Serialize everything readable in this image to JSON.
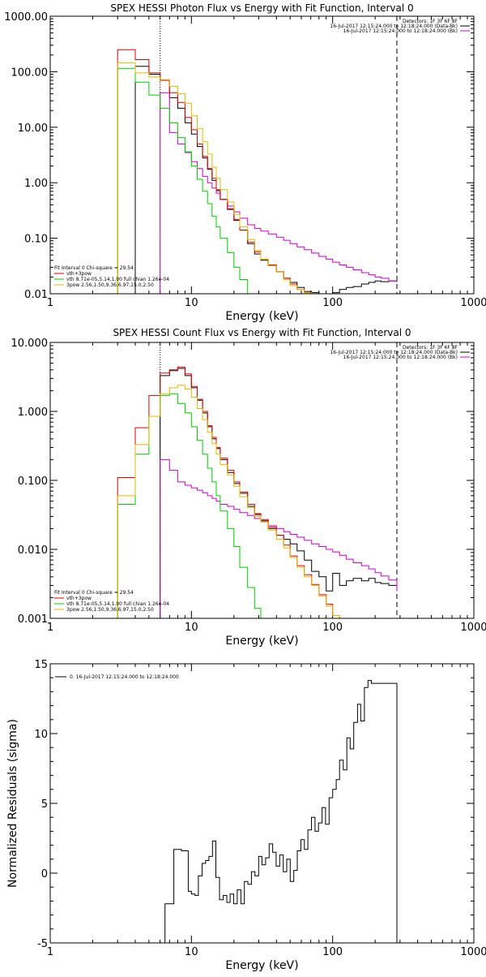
{
  "chart_data": [
    {
      "type": "line",
      "title": "SPEX HESSI Photon Flux vs Energy with Fit Function, Interval 0",
      "xlabel": "Energy (keV)",
      "ylabel": "",
      "xscale": "log",
      "yscale": "log",
      "xlim": [
        1,
        1000
      ],
      "ylim": [
        0.01,
        1000
      ],
      "xticks": [
        1,
        10,
        100,
        1000
      ],
      "xtick_labels": [
        "1",
        "10",
        "100",
        "1000"
      ],
      "yticks": [
        0.01,
        0.1,
        1,
        10,
        100,
        1000
      ],
      "ytick_labels": [
        "0.01",
        "0.10",
        "1.00",
        "10.00",
        "100.00",
        "1000.00"
      ],
      "vlines": [
        {
          "x": 6,
          "style": "dotted"
        },
        {
          "x": 285,
          "style": "dashed"
        }
      ],
      "legend_top_right": [
        {
          "text": "Detectors: 1F 3F 6F 8F",
          "color": ""
        },
        {
          "text": "16-Jul-2017 12:15:24.000 to 12:18:24.000 (Data-Bk)",
          "color": "#000000"
        },
        {
          "text": "16-Jul-2017 12:15:24.000 to 12:18:24.000 (Bk)",
          "color": "#cc00cc"
        }
      ],
      "legend_bottom_left": [
        {
          "text": "Fit Interval  0    Chi-square = 29.54",
          "color": ""
        },
        {
          "text": "vth+3pow",
          "color": "#dd0000"
        },
        {
          "text": "vth 8.71e-05,5.14,1.00   full chian 1.26e-04",
          "color": "#00cc00"
        },
        {
          "text": "3pow  2.56,1.50,9.36,6.97,15.0,2.50",
          "color": "#ddbb00"
        }
      ],
      "series": [
        {
          "name": "16-Jul-2017 12:15:24.000 to 12:18:24.000 (Data-Bk)",
          "color": "#000000",
          "x": [
            3,
            4,
            5,
            6,
            7,
            8,
            9,
            10,
            11,
            12,
            13,
            14,
            15,
            16,
            18,
            20,
            22,
            25,
            28,
            31,
            35,
            40,
            45,
            50,
            56,
            63,
            71,
            80,
            90,
            100,
            112,
            125,
            140,
            160,
            180,
            200,
            220,
            250,
            285
          ],
          "y": [
            0.001,
            125,
            90,
            70,
            34,
            22,
            12,
            7.5,
            4.5,
            2.8,
            1.75,
            1.1,
            0.72,
            0.5,
            0.33,
            0.21,
            0.14,
            0.08,
            0.052,
            0.04,
            0.032,
            0.025,
            0.019,
            0.016,
            0.013,
            0.011,
            0.0105,
            0.008,
            0.01,
            0.0105,
            0.012,
            0.013,
            0.0135,
            0.015,
            0.016,
            0.017,
            0.0165,
            0.017,
            0.016
          ]
        },
        {
          "name": "",
          "color": "#cc00cc",
          "x": [
            6,
            7,
            8,
            9,
            10,
            11,
            12,
            13,
            14,
            15,
            16,
            18,
            20,
            22,
            25,
            28,
            31,
            35,
            40,
            45,
            50,
            56,
            63,
            71,
            80,
            90,
            100,
            112,
            125,
            140,
            160,
            180,
            200,
            220,
            250,
            285
          ],
          "y": [
            42,
            8,
            5,
            3.5,
            2.4,
            1.8,
            1.3,
            1,
            0.8,
            0.65,
            0.5,
            0.38,
            0.3,
            0.23,
            0.175,
            0.15,
            0.135,
            0.12,
            0.105,
            0.092,
            0.08,
            0.07,
            0.062,
            0.054,
            0.047,
            0.042,
            0.037,
            0.033,
            0.03,
            0.027,
            0.024,
            0.022,
            0.02,
            0.019,
            0.017,
            0.016
          ]
        },
        {
          "name": "vth+3pow",
          "color": "#dd0000",
          "x": [
            3,
            4,
            5,
            6,
            7,
            8,
            9,
            10,
            11,
            12,
            13,
            14,
            15,
            16,
            18,
            20,
            22,
            25,
            28,
            31,
            35,
            40,
            45,
            50,
            56,
            63,
            71,
            80,
            90
          ],
          "y": [
            250,
            165,
            95,
            70,
            42,
            28,
            15,
            9,
            5,
            3,
            1.8,
            1.2,
            0.75,
            0.5,
            0.34,
            0.22,
            0.14,
            0.085,
            0.057,
            0.042,
            0.033,
            0.025,
            0.019,
            0.015,
            0.012,
            0.0105,
            0.01,
            0.01,
            0.01
          ]
        },
        {
          "name": "vth 8.71e-05,5.14,1.00   full chian 1.26e-04",
          "color": "#00cc00",
          "x": [
            3,
            4,
            5,
            6,
            7,
            8,
            9,
            10,
            11,
            12,
            13,
            14,
            15,
            16,
            18,
            20,
            22,
            25
          ],
          "y": [
            115,
            65,
            38,
            22,
            12,
            6.5,
            3.6,
            2,
            1.15,
            0.7,
            0.42,
            0.25,
            0.16,
            0.1,
            0.055,
            0.03,
            0.018,
            0.01
          ]
        },
        {
          "name": "3pow  2.56,1.50,9.36,6.97,15.0,2.50",
          "color": "#ddbb00",
          "x": [
            3,
            4,
            5,
            6,
            7,
            8,
            9,
            10,
            11,
            12,
            13,
            14,
            15,
            16,
            18,
            20,
            22,
            25,
            28,
            31,
            35,
            40,
            45,
            50,
            56,
            63,
            71,
            80,
            90
          ],
          "y": [
            145,
            95,
            80,
            72,
            55,
            40,
            27,
            16,
            9.5,
            5.5,
            3.3,
            1.9,
            1.2,
            0.75,
            0.45,
            0.27,
            0.16,
            0.095,
            0.06,
            0.042,
            0.032,
            0.025,
            0.018,
            0.014,
            0.012,
            0.0105,
            0.01,
            0.01,
            0.01
          ]
        }
      ]
    },
    {
      "type": "line",
      "title": "SPEX HESSI Count Flux vs Energy with Fit Function, Interval 0",
      "xlabel": "Energy (keV)",
      "ylabel": "",
      "xscale": "log",
      "yscale": "log",
      "xlim": [
        1,
        1000
      ],
      "ylim": [
        0.001,
        10
      ],
      "xticks": [
        1,
        10,
        100,
        1000
      ],
      "xtick_labels": [
        "1",
        "10",
        "100",
        "1000"
      ],
      "yticks": [
        0.001,
        0.01,
        0.1,
        1,
        10
      ],
      "ytick_labels": [
        "0.001",
        "0.010",
        "0.100",
        "1.000",
        "10.000"
      ],
      "vlines": [
        {
          "x": 6,
          "style": "dotted"
        },
        {
          "x": 285,
          "style": "dashed"
        }
      ],
      "legend_top_right": [
        {
          "text": "Detectors: 1F 3F 6F 8F",
          "color": ""
        },
        {
          "text": "16-Jul-2017 12:15:24.000 to 12:18:24.000 (Data-Bk)",
          "color": "#000000"
        },
        {
          "text": "16-Jul-2017 12:15:24.000 to 12:18:24.000 (Bk)",
          "color": "#cc00cc"
        }
      ],
      "legend_bottom_left": [
        {
          "text": "Fit Interval  0    Chi-square = 29.54",
          "color": ""
        },
        {
          "text": "vth+3pow",
          "color": "#dd0000"
        },
        {
          "text": "vth 8.71e-05,5.14,1.00   full chian 1.26e-04",
          "color": "#00cc00"
        },
        {
          "text": "3pow  2.56,1.50,9.36,6.97,15.0,2.50",
          "color": "#ddbb00"
        }
      ],
      "series": [
        {
          "name": "16-Jul-2017 12:15:24.000 to 12:18:24.000 (Data-Bk)",
          "color": "#000000",
          "x": [
            6,
            7,
            8,
            9,
            10,
            11,
            12,
            13,
            14,
            15,
            16,
            18,
            20,
            22,
            25,
            28,
            31,
            35,
            40,
            45,
            50,
            56,
            63,
            71,
            80,
            90,
            100,
            112,
            125,
            140,
            160,
            180,
            200,
            220,
            250,
            285
          ],
          "y": [
            3.3,
            3.9,
            4.2,
            3.3,
            2.2,
            1.45,
            0.95,
            0.6,
            0.4,
            0.29,
            0.2,
            0.13,
            0.09,
            0.065,
            0.042,
            0.032,
            0.026,
            0.02,
            0.016,
            0.014,
            0.012,
            0.0095,
            0.007,
            0.0048,
            0.004,
            0.0025,
            0.0045,
            0.003,
            0.0035,
            0.0038,
            0.0035,
            0.0038,
            0.0033,
            0.0032,
            0.003,
            0.0025
          ]
        },
        {
          "name": "",
          "color": "#cc00cc",
          "x": [
            6,
            7,
            8,
            9,
            10,
            11,
            12,
            13,
            14,
            15,
            16,
            18,
            20,
            22,
            25,
            28,
            31,
            35,
            40,
            45,
            50,
            56,
            63,
            71,
            80,
            90,
            100,
            112,
            125,
            140,
            160,
            180,
            200,
            220,
            250,
            285
          ],
          "y": [
            0.2,
            0.14,
            0.095,
            0.085,
            0.078,
            0.072,
            0.066,
            0.06,
            0.055,
            0.05,
            0.045,
            0.042,
            0.038,
            0.034,
            0.031,
            0.028,
            0.025,
            0.022,
            0.02,
            0.018,
            0.0165,
            0.015,
            0.0135,
            0.012,
            0.011,
            0.01,
            0.0092,
            0.0082,
            0.0072,
            0.0064,
            0.0058,
            0.0052,
            0.0046,
            0.0041,
            0.0036,
            0.0025
          ]
        },
        {
          "name": "vth+3pow",
          "color": "#dd0000",
          "x": [
            3,
            4,
            5,
            6,
            7,
            8,
            9,
            10,
            11,
            12,
            13,
            14,
            15,
            16,
            18,
            20,
            22,
            25,
            28,
            31,
            35,
            40,
            45,
            50,
            56,
            63,
            71,
            80,
            90,
            100,
            112,
            125
          ],
          "y": [
            0.11,
            0.58,
            1.7,
            3.6,
            4,
            4.4,
            3.5,
            2.3,
            1.5,
            1,
            0.62,
            0.42,
            0.3,
            0.21,
            0.14,
            0.095,
            0.068,
            0.045,
            0.033,
            0.027,
            0.021,
            0.016,
            0.0115,
            0.008,
            0.0058,
            0.0043,
            0.0031,
            0.0022,
            0.0016,
            0.0011,
            0.001,
            0.001
          ]
        },
        {
          "name": "vth 8.71e-05,5.14,1.00   full chian 1.26e-04",
          "color": "#00cc00",
          "x": [
            3,
            4,
            5,
            6,
            7,
            8,
            9,
            10,
            11,
            12,
            13,
            14,
            15,
            16,
            18,
            20,
            22,
            25,
            28,
            31
          ],
          "y": [
            0.045,
            0.24,
            0.85,
            1.7,
            1.8,
            1.3,
            0.95,
            0.6,
            0.38,
            0.24,
            0.15,
            0.095,
            0.06,
            0.036,
            0.02,
            0.011,
            0.0055,
            0.0028,
            0.0014,
            0.001
          ]
        },
        {
          "name": "3pow  2.56,1.50,9.36,6.97,15.0,2.50",
          "color": "#ddbb00",
          "x": [
            3,
            4,
            5,
            6,
            7,
            8,
            9,
            10,
            11,
            12,
            13,
            14,
            15,
            16,
            18,
            20,
            22,
            25,
            28,
            31,
            35,
            40,
            45,
            50,
            56,
            63,
            71,
            80,
            90,
            100,
            112,
            125
          ],
          "y": [
            0.06,
            0.33,
            0.85,
            1.8,
            2.2,
            2.4,
            2.1,
            1.6,
            1.1,
            0.76,
            0.5,
            0.34,
            0.24,
            0.17,
            0.12,
            0.082,
            0.058,
            0.04,
            0.03,
            0.025,
            0.019,
            0.014,
            0.0105,
            0.0076,
            0.0055,
            0.004,
            0.003,
            0.0021,
            0.0015,
            0.0011,
            0.001,
            0.001
          ]
        }
      ]
    },
    {
      "type": "line",
      "title": "",
      "xlabel": "Energy (keV)",
      "ylabel": "Normalized Residuals (sigma)",
      "xscale": "log",
      "yscale": "linear",
      "xlim": [
        1,
        1000
      ],
      "ylim": [
        -5,
        15
      ],
      "xticks": [
        1,
        10,
        100,
        1000
      ],
      "xtick_labels": [
        "1",
        "10",
        "100",
        "1000"
      ],
      "yticks": [
        -5,
        0,
        5,
        10,
        15
      ],
      "ytick_labels": [
        "-5",
        "0",
        "5",
        "10",
        "15"
      ],
      "legend": [
        {
          "text": "0. 16-Jul-2017 12:15:24.000 to 12:18:24.000",
          "color": "#000000"
        }
      ],
      "series": [
        {
          "name": "0. 16-Jul-2017 12:15:24.000 to 12:18:24.000",
          "color": "#000000",
          "x": [
            6,
            6.5,
            7,
            7.5,
            8,
            8.5,
            9,
            9.5,
            10,
            10.6,
            11.2,
            11.9,
            12.6,
            13.3,
            14.1,
            14.9,
            15.8,
            16.8,
            17.8,
            18.8,
            19.9,
            21.1,
            22.4,
            23.7,
            25.1,
            26.6,
            28.2,
            29.9,
            31.6,
            33.5,
            35.5,
            37.6,
            39.8,
            42.2,
            44.7,
            47.3,
            50.1,
            53.1,
            56.2,
            59.6,
            63.1,
            66.8,
            70.8,
            75,
            79.4,
            84.1,
            89.1,
            94.4,
            100,
            106,
            112,
            119,
            126,
            133,
            141,
            150,
            158,
            168,
            178,
            188,
            200,
            211,
            224,
            237,
            251,
            266,
            285
          ],
          "y": [
            -5,
            -2.2,
            -2.2,
            1.7,
            1.7,
            1.6,
            1.6,
            -1.3,
            -1.5,
            -1.6,
            -0.2,
            0.7,
            0.9,
            1.2,
            2.3,
            -0.3,
            -1.9,
            -1.6,
            -2.1,
            -1.5,
            -2.2,
            -1.2,
            -2.2,
            -0.6,
            -0.8,
            0.1,
            -0.2,
            1.2,
            0.6,
            1.1,
            2.1,
            1.5,
            0.5,
            1.3,
            0.1,
            1.0,
            -0.6,
            0.2,
            1.6,
            2.4,
            1.7,
            3.1,
            4.0,
            3.0,
            3.6,
            4.7,
            3.5,
            5.4,
            6.0,
            6.7,
            8.1,
            7.4,
            9.7,
            8.9,
            10.8,
            12.1,
            10.9,
            13.3,
            13.8,
            13.6,
            13.6,
            13.6,
            13.6,
            13.6,
            13.6,
            13.6,
            -5
          ]
        }
      ]
    }
  ]
}
